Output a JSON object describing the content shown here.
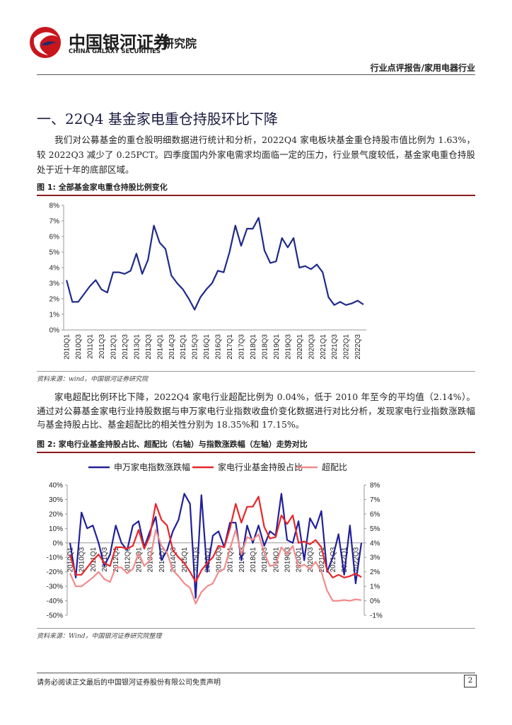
{
  "header": {
    "logo_cn": "中国银河证券",
    "logo_en": "CHINA GALAXY SECURITIES",
    "institute": "研究院",
    "report_type": "行业点评报告/家用电器行业"
  },
  "section_title": "一、22Q4 基金家电重仓持股环比下降",
  "paragraphs": [
    "我们对公募基金的重仓股明细数据进行统计和分析，2022Q4 家电板块基金重仓持股市值比例为 1.63%，较 2022Q3 减少了 0.25PCT。四季度国内外家电需求均面临一定的压力，行业景气度较低，基金家电重仓持股处于近十年的底部区域。",
    "家电超配比例环比下降，2022Q4 家电行业超配比例为 0.04%，低于 2010 年至今的平均值（2.14%）。通过对公募基金家电行业持股数据与申万家电行业指数收盘价变化数据进行对比分析，发现家电行业指数涨跌幅与基金持股占比、基金超配比的相关性分别为 18.35%和 17.15%。"
  ],
  "chart_data": [
    {
      "type": "line",
      "title": "图 1: 全部基金家电重仓持股比例变化",
      "source": "资料来源：wind，中国银河证券研究院",
      "categories": [
        "2010Q1",
        null,
        "2010Q3",
        null,
        "2011Q1",
        null,
        "2011Q3",
        null,
        "2012Q1",
        null,
        "2012Q3",
        null,
        "2013Q1",
        null,
        "2013Q3",
        null,
        "2014Q1",
        null,
        "2014Q3",
        null,
        "2015Q1",
        null,
        "2015Q3",
        null,
        "2016Q1",
        null,
        "2016Q3",
        null,
        "2017Q1",
        null,
        "2017Q3",
        null,
        "2018Q1",
        null,
        "2018Q3",
        null,
        "2019Q1",
        null,
        "2019Q3",
        null,
        "2020Q1",
        null,
        "2020Q3",
        null,
        "2021Q1",
        null,
        "2021Q3",
        null,
        "2022Q1",
        null,
        "2022Q3",
        null
      ],
      "values": [
        3.2,
        1.8,
        1.8,
        2.3,
        2.8,
        3.2,
        2.6,
        2.4,
        3.7,
        3.7,
        3.6,
        3.8,
        4.9,
        3.6,
        4.5,
        6.7,
        5.6,
        5.2,
        3.5,
        3.0,
        2.6,
        2.0,
        1.3,
        2.1,
        2.6,
        3.0,
        3.8,
        3.7,
        5.0,
        6.7,
        5.4,
        6.5,
        6.5,
        7.2,
        5.1,
        4.3,
        4.4,
        5.9,
        5.3,
        5.9,
        4.0,
        4.1,
        3.9,
        4.2,
        3.7,
        2.1,
        1.6,
        1.8,
        1.6,
        1.7,
        1.88,
        1.63
      ],
      "color": "#1f2a8a",
      "ylim": [
        0,
        8
      ],
      "yticks": [
        {
          "value": 0,
          "label": "0%"
        },
        {
          "value": 1,
          "label": "1%"
        },
        {
          "value": 2,
          "label": "2%"
        },
        {
          "value": 3,
          "label": "3%"
        },
        {
          "value": 4,
          "label": "4%"
        },
        {
          "value": 5,
          "label": "5%"
        },
        {
          "value": 6,
          "label": "6%"
        },
        {
          "value": 7,
          "label": "7%"
        },
        {
          "value": 8,
          "label": "8%"
        }
      ],
      "grid": false
    },
    {
      "type": "line",
      "title": "图 2: 家电行业基金持股占比、超配比（右轴）与指数涨跌幅（左轴）走势对比",
      "source": "资料来源：Wind，中国银河证券研究院整理",
      "categories": [
        "2010Q1",
        null,
        "2010Q3",
        null,
        "2011Q1",
        null,
        "2011Q3",
        null,
        "2012Q1",
        null,
        "2012Q3",
        null,
        "2013Q1",
        null,
        "2013Q3",
        null,
        "2014Q1",
        null,
        "2014Q3",
        null,
        "2015Q1",
        null,
        "2015Q3",
        null,
        "2016Q1",
        null,
        "2016Q3",
        null,
        "2017Q1",
        null,
        "2017Q3",
        null,
        "2018Q1",
        null,
        "2018Q3",
        null,
        "2019Q1",
        null,
        "2019Q3",
        null,
        "2020Q1",
        null,
        "2020Q3",
        null,
        "2021Q1",
        null,
        "2021Q3",
        null,
        "2022Q1",
        null,
        "2022Q3",
        null
      ],
      "series": [
        {
          "name": "申万家电指数涨跌幅",
          "color": "#22209a",
          "values": [
            0,
            -24,
            21,
            10,
            12,
            0,
            -16,
            -8,
            12,
            0,
            -5,
            12,
            15,
            -3,
            8,
            18,
            -12,
            -5,
            8,
            16,
            34,
            27,
            -38,
            33,
            -20,
            5,
            8,
            -3,
            14,
            14,
            -12,
            12,
            0,
            12,
            -2,
            8,
            5,
            34,
            2,
            0,
            15,
            -12,
            17,
            10,
            22,
            -20,
            -10,
            6,
            -22,
            12,
            -28,
            0
          ]
        },
        {
          "name": "家电行业基金持股占比",
          "color": "#e8262b",
          "axis": "y2",
          "values": [
            3.2,
            1.8,
            1.8,
            2.3,
            2.8,
            3.2,
            2.6,
            2.4,
            3.7,
            3.7,
            3.6,
            3.8,
            4.9,
            3.6,
            4.5,
            6.7,
            5.6,
            5.2,
            3.5,
            3.0,
            2.6,
            2.0,
            1.3,
            2.1,
            2.6,
            3.0,
            3.8,
            3.7,
            5.0,
            6.7,
            5.4,
            6.5,
            6.5,
            7.2,
            5.1,
            4.3,
            4.4,
            5.9,
            5.3,
            5.9,
            4.0,
            4.1,
            3.9,
            4.2,
            3.7,
            2.1,
            1.6,
            1.8,
            1.6,
            1.7,
            1.88,
            1.63
          ]
        },
        {
          "name": "超配比",
          "color": "#f28b8b",
          "axis": "y2",
          "values": [
            1.9,
            1.0,
            1.0,
            1.3,
            1.6,
            2.0,
            1.5,
            1.3,
            2.3,
            2.3,
            1.9,
            2.2,
            3.3,
            2.4,
            2.8,
            4.9,
            3.8,
            3.3,
            2.1,
            1.7,
            1.2,
            0.9,
            -0.2,
            0.6,
            1.0,
            1.2,
            2.0,
            2.2,
            3.6,
            4.9,
            3.2,
            4.4,
            4.2,
            4.6,
            3.3,
            2.4,
            2.5,
            3.7,
            3.2,
            3.8,
            2.3,
            2.5,
            2.2,
            2.7,
            2.0,
            0.7,
            0.0,
            0.0,
            0.05,
            0.0,
            0.1,
            0.04
          ]
        }
      ],
      "ylim": [
        -50,
        40
      ],
      "yticks": [
        {
          "value": -50,
          "label": "-50%"
        },
        {
          "value": -40,
          "label": "-40%"
        },
        {
          "value": -30,
          "label": "-30%"
        },
        {
          "value": -20,
          "label": "-20%"
        },
        {
          "value": -10,
          "label": "-10%"
        },
        {
          "value": 0,
          "label": "0%"
        },
        {
          "value": 10,
          "label": "10%"
        },
        {
          "value": 20,
          "label": "20%"
        },
        {
          "value": 30,
          "label": "30%"
        },
        {
          "value": 40,
          "label": "40%"
        }
      ],
      "y2lim": [
        -1,
        8
      ],
      "y2ticks": [
        {
          "value": -1,
          "label": "-1%"
        },
        {
          "value": 0,
          "label": "0%"
        },
        {
          "value": 1,
          "label": "1%"
        },
        {
          "value": 2,
          "label": "2%"
        },
        {
          "value": 3,
          "label": "3%"
        },
        {
          "value": 4,
          "label": "4%"
        },
        {
          "value": 5,
          "label": "5%"
        },
        {
          "value": 6,
          "label": "6%"
        },
        {
          "value": 7,
          "label": "7%"
        },
        {
          "value": 8,
          "label": "8%"
        }
      ],
      "grid": false,
      "legend": "top"
    }
  ],
  "footer": {
    "disclaimer": "请务必阅读正文最后的中国银河证券股份有限公司免责声明",
    "page": "2"
  }
}
